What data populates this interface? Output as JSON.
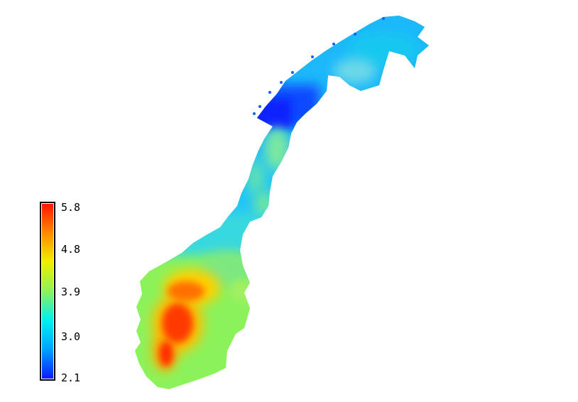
{
  "map": {
    "region": "Norway",
    "colorbar": {
      "ticks": [
        "5.8",
        "4.8",
        "3.9",
        "3.0",
        "2.1"
      ],
      "min": 2.1,
      "max": 5.8,
      "colors": [
        "#0a1cff",
        "#00a2ff",
        "#00f0f0",
        "#8cf25a",
        "#f0f000",
        "#ff8a00",
        "#ff1400"
      ]
    }
  }
}
